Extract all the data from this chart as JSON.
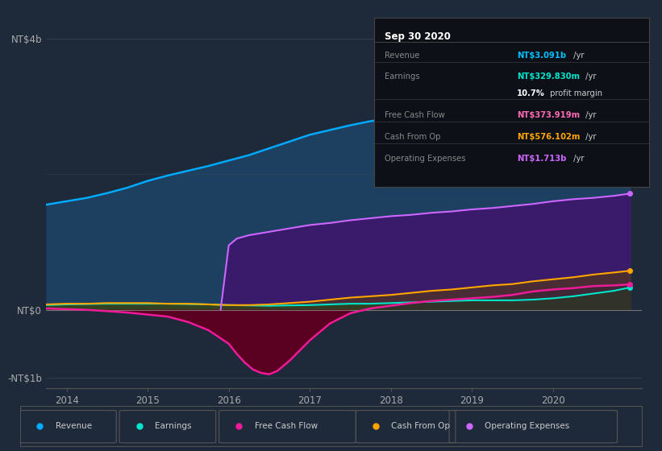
{
  "background_color": "#1e2a3a",
  "plot_bg_color": "#1e2a3a",
  "info_box": {
    "title": "Sep 30 2020",
    "rows": [
      {
        "label": "Revenue",
        "value": "NT$3.091b",
        "suffix": " /yr",
        "value_color": "#00bfff"
      },
      {
        "label": "Earnings",
        "value": "NT$329.830m",
        "suffix": " /yr",
        "value_color": "#00e5cc"
      },
      {
        "label": "",
        "value": "10.7%",
        "suffix": " profit margin",
        "value_color": "#ffffff"
      },
      {
        "label": "Free Cash Flow",
        "value": "NT$373.919m",
        "suffix": " /yr",
        "value_color": "#ff69b4"
      },
      {
        "label": "Cash From Op",
        "value": "NT$576.102m",
        "suffix": " /yr",
        "value_color": "#ffa500"
      },
      {
        "label": "Operating Expenses",
        "value": "NT$1.713b",
        "suffix": " /yr",
        "value_color": "#cc66ff"
      }
    ]
  },
  "revenue_x": [
    2013.75,
    2014.0,
    2014.25,
    2014.5,
    2014.75,
    2015.0,
    2015.25,
    2015.5,
    2015.75,
    2016.0,
    2016.25,
    2016.5,
    2016.75,
    2017.0,
    2017.25,
    2017.5,
    2017.75,
    2018.0,
    2018.25,
    2018.5,
    2018.75,
    2019.0,
    2019.25,
    2019.5,
    2019.75,
    2020.0,
    2020.25,
    2020.5,
    2020.75,
    2020.95
  ],
  "revenue_y": [
    1.55,
    1.6,
    1.65,
    1.72,
    1.8,
    1.9,
    1.98,
    2.05,
    2.12,
    2.2,
    2.28,
    2.38,
    2.48,
    2.58,
    2.65,
    2.72,
    2.78,
    2.82,
    2.88,
    2.92,
    2.96,
    3.0,
    3.05,
    3.08,
    3.1,
    3.12,
    3.1,
    3.08,
    3.07,
    3.09
  ],
  "earnings_x": [
    2013.75,
    2014.0,
    2014.25,
    2014.5,
    2014.75,
    2015.0,
    2015.25,
    2015.5,
    2015.75,
    2016.0,
    2016.25,
    2016.5,
    2016.75,
    2017.0,
    2017.25,
    2017.5,
    2017.75,
    2018.0,
    2018.25,
    2018.5,
    2018.75,
    2019.0,
    2019.25,
    2019.5,
    2019.75,
    2020.0,
    2020.25,
    2020.5,
    2020.75,
    2020.95
  ],
  "earnings_y": [
    0.07,
    0.08,
    0.085,
    0.09,
    0.09,
    0.09,
    0.09,
    0.085,
    0.08,
    0.07,
    0.065,
    0.06,
    0.065,
    0.07,
    0.08,
    0.09,
    0.09,
    0.1,
    0.11,
    0.12,
    0.13,
    0.14,
    0.14,
    0.14,
    0.15,
    0.17,
    0.2,
    0.24,
    0.28,
    0.33
  ],
  "fcf_x": [
    2013.75,
    2014.0,
    2014.25,
    2014.5,
    2014.75,
    2015.0,
    2015.25,
    2015.5,
    2015.75,
    2016.0,
    2016.1,
    2016.2,
    2016.3,
    2016.4,
    2016.5,
    2016.6,
    2016.75,
    2017.0,
    2017.25,
    2017.5,
    2017.75,
    2018.0,
    2018.25,
    2018.5,
    2018.75,
    2019.0,
    2019.25,
    2019.5,
    2019.75,
    2020.0,
    2020.25,
    2020.5,
    2020.75,
    2020.95
  ],
  "fcf_y": [
    0.02,
    0.01,
    0.0,
    -0.02,
    -0.04,
    -0.07,
    -0.1,
    -0.18,
    -0.3,
    -0.5,
    -0.65,
    -0.78,
    -0.88,
    -0.93,
    -0.95,
    -0.9,
    -0.75,
    -0.45,
    -0.2,
    -0.05,
    0.02,
    0.06,
    0.1,
    0.13,
    0.15,
    0.17,
    0.19,
    0.22,
    0.27,
    0.3,
    0.32,
    0.35,
    0.36,
    0.374
  ],
  "cop_x": [
    2013.75,
    2014.0,
    2014.25,
    2014.5,
    2014.75,
    2015.0,
    2015.25,
    2015.5,
    2015.75,
    2016.0,
    2016.25,
    2016.5,
    2016.75,
    2017.0,
    2017.25,
    2017.5,
    2017.75,
    2018.0,
    2018.25,
    2018.5,
    2018.75,
    2019.0,
    2019.25,
    2019.5,
    2019.75,
    2020.0,
    2020.25,
    2020.5,
    2020.75,
    2020.95
  ],
  "cop_y": [
    0.08,
    0.09,
    0.09,
    0.1,
    0.1,
    0.1,
    0.09,
    0.09,
    0.08,
    0.07,
    0.07,
    0.08,
    0.1,
    0.12,
    0.15,
    0.18,
    0.2,
    0.22,
    0.25,
    0.28,
    0.3,
    0.33,
    0.36,
    0.38,
    0.42,
    0.45,
    0.48,
    0.52,
    0.55,
    0.576
  ],
  "opex_x": [
    2015.9,
    2016.0,
    2016.1,
    2016.25,
    2016.5,
    2016.75,
    2017.0,
    2017.25,
    2017.5,
    2017.75,
    2018.0,
    2018.25,
    2018.5,
    2018.75,
    2019.0,
    2019.25,
    2019.5,
    2019.75,
    2020.0,
    2020.25,
    2020.5,
    2020.75,
    2020.95
  ],
  "opex_y": [
    0.0,
    0.95,
    1.05,
    1.1,
    1.15,
    1.2,
    1.25,
    1.28,
    1.32,
    1.35,
    1.38,
    1.4,
    1.43,
    1.45,
    1.48,
    1.5,
    1.53,
    1.56,
    1.6,
    1.63,
    1.65,
    1.68,
    1.713
  ],
  "legend_items": [
    {
      "label": "Revenue",
      "color": "#00aaff"
    },
    {
      "label": "Earnings",
      "color": "#00e5cc"
    },
    {
      "label": "Free Cash Flow",
      "color": "#ee1a9a"
    },
    {
      "label": "Cash From Op",
      "color": "#ffa500"
    },
    {
      "label": "Operating Expenses",
      "color": "#cc66ff"
    }
  ],
  "xlim": [
    2013.75,
    2021.1
  ],
  "ylim": [
    -1.15,
    4.3
  ],
  "revenue_color": "#00aaff",
  "revenue_fill": "#1e4060",
  "earnings_color": "#00e5cc",
  "earnings_fill": "#003a30",
  "fcf_color": "#ee1a9a",
  "fcf_fill_neg": "#5a0020",
  "cop_color": "#ffa500",
  "opex_color": "#cc66ff",
  "opex_fill": "#3a1a6a"
}
